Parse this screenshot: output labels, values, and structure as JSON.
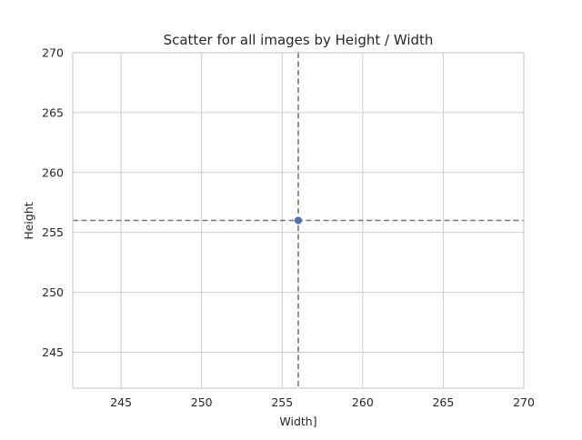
{
  "chart_data": {
    "type": "scatter",
    "title": "Scatter for all images by Height / Width",
    "xlabel": "Width]",
    "ylabel": "Height",
    "xlim": [
      242,
      270
    ],
    "ylim": [
      242,
      270
    ],
    "xticks": [
      245,
      250,
      255,
      260,
      265,
      270
    ],
    "yticks": [
      245,
      250,
      255,
      260,
      265,
      270
    ],
    "grid": true,
    "points": [
      {
        "x": 256,
        "y": 256
      }
    ],
    "reference_lines": {
      "vertical_x": 256,
      "horizontal_y": 256,
      "style": "dashed",
      "color": "#777777"
    },
    "point_color": "#4c72b0"
  }
}
